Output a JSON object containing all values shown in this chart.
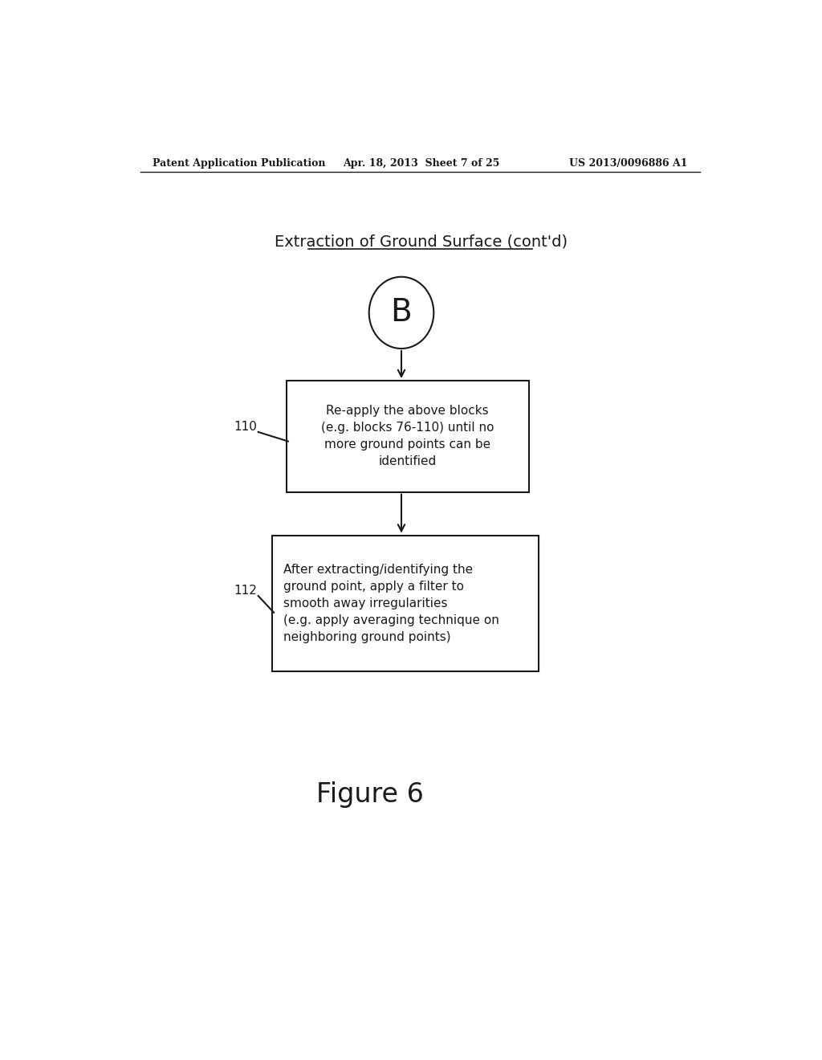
{
  "bg_color": "#ffffff",
  "header_left": "Patent Application Publication",
  "header_mid": "Apr. 18, 2013  Sheet 7 of 25",
  "header_right": "US 2013/0096886 A1",
  "title": "Extraction of Ground Surface (cont'd)",
  "connector_label": "B",
  "box1_label": "110",
  "box1_text": "Re-apply the above blocks\n(e.g. blocks 76-110) until no\nmore ground points can be\nidentified",
  "box2_label": "112",
  "box2_text": "After extracting/identifying the\nground point, apply a filter to\nsmooth away irregularities\n(e.g. apply averaging technique on\nneighboring ground points)",
  "figure_caption": "Figure 6",
  "text_color": "#1a1a1a",
  "box_edge_color": "#1a1a1a",
  "arrow_color": "#1a1a1a",
  "line_width": 1.5
}
